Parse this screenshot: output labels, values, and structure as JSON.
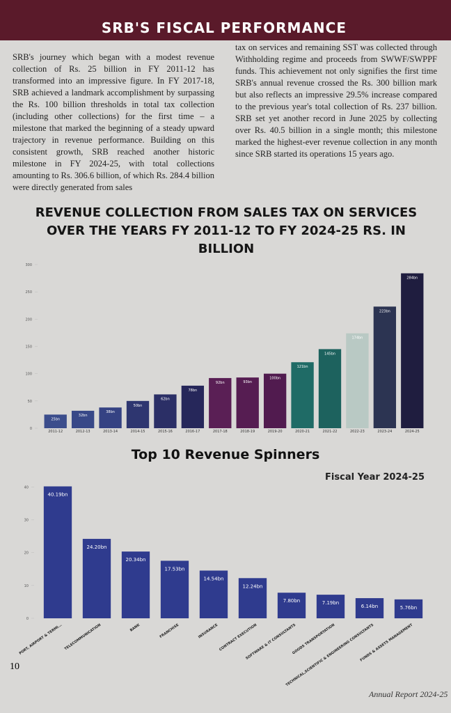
{
  "header": {
    "title": "SRB'S FISCAL PERFORMANCE"
  },
  "body": {
    "left": "SRB's journey which began with a modest revenue collection of Rs. 25 billion in FY 2011-12 has transformed into an impressive figure. In FY 2017-18, SRB achieved a landmark accomplishment by surpassing the Rs. 100 billion thresholds in total tax collection (including other collections) for the first time – a milestone that marked the beginning of a steady upward trajectory in revenue performance. Building on this consistent growth, SRB reached another historic milestone in FY 2024-25, with total collections amounting to Rs. 306.6 billion, of which Rs. 284.4 billion were directly generated from sales",
    "right": "tax on services and remaining SST was collected through Withholding regime and proceeds from SWWF/SWPPF funds. This achievement not only signifies the first time SRB's annual revenue crossed the Rs. 300 billion mark but also reflects an impressive 29.5% increase compared to the previous year's total collection of Rs. 237 billion. SRB set yet another record in June 2025 by collecting over Rs. 40.5 billion in a single month; this milestone marked the highest-ever revenue collection in any month since SRB started its operations 15 years ago."
  },
  "chart_data": [
    {
      "type": "bar",
      "title": "REVENUE COLLECTION FROM SALES TAX ON SERVICES OVER THE YEARS FY 2011-12 TO FY 2024-25 RS. IN BILLION",
      "categories": [
        "2011-12",
        "2012-13",
        "2013-14",
        "2014-15",
        "2015-16",
        "2016-17",
        "2017-18",
        "2018-19",
        "2019-20",
        "2020-21",
        "2021-22",
        "2022-23",
        "2023-24",
        "2024-25"
      ],
      "values": [
        25,
        32,
        38,
        50,
        62,
        78,
        92,
        93,
        100,
        121,
        145,
        174,
        223,
        284
      ],
      "value_labels": [
        "25bn",
        "32bn",
        "38bn",
        "50bn",
        "62bn",
        "78bn",
        "92bn",
        "93bn",
        "100bn",
        "121bn",
        "145bn",
        "174bn",
        "223bn",
        "284bn"
      ],
      "colors": [
        "#3b4d8c",
        "#384888",
        "#354283",
        "#2e3670",
        "#2b2f66",
        "#26275a",
        "#5a1f55",
        "#561d52",
        "#511b4f",
        "#1f6b66",
        "#1d625e",
        "#b9c9c4",
        "#2c3452",
        "#1f1d3f"
      ],
      "ylim": [
        0,
        300
      ],
      "yticks": [
        0,
        50,
        100,
        150,
        200,
        250,
        300
      ]
    },
    {
      "type": "bar",
      "title": "Top 10 Revenue Spinners",
      "subtitle": "Fiscal Year 2024-25",
      "categories": [
        "PORT, AIRPORT & TERMI...",
        "TELECOMMUNICATION",
        "BANK",
        "FRANCHISE",
        "INSURANCE",
        "CONTRACT EXECUTION",
        "SOFTWARE & IT CONSULTANTS",
        "GOODS TRANSPORTATION",
        "TECHNICAL,SCIENTIFIC & ENGINEERING CONSULTANTS",
        "FUNDS & ASSETS MANAGEMENT"
      ],
      "values": [
        40.19,
        24.2,
        20.34,
        17.53,
        14.54,
        12.24,
        7.8,
        7.19,
        6.14,
        5.76
      ],
      "value_labels": [
        "40.19bn",
        "24.20bn",
        "20.34bn",
        "17.53bn",
        "14.54bn",
        "12.24bn",
        "7.80bn",
        "7.19bn",
        "6.14bn",
        "5.76bn"
      ],
      "color": "#2f3b8e",
      "ylim": [
        0,
        42
      ],
      "yticks": [
        0,
        10,
        20,
        30,
        40
      ]
    }
  ],
  "page_number": "10",
  "footer": "Annual Report 2024-25"
}
